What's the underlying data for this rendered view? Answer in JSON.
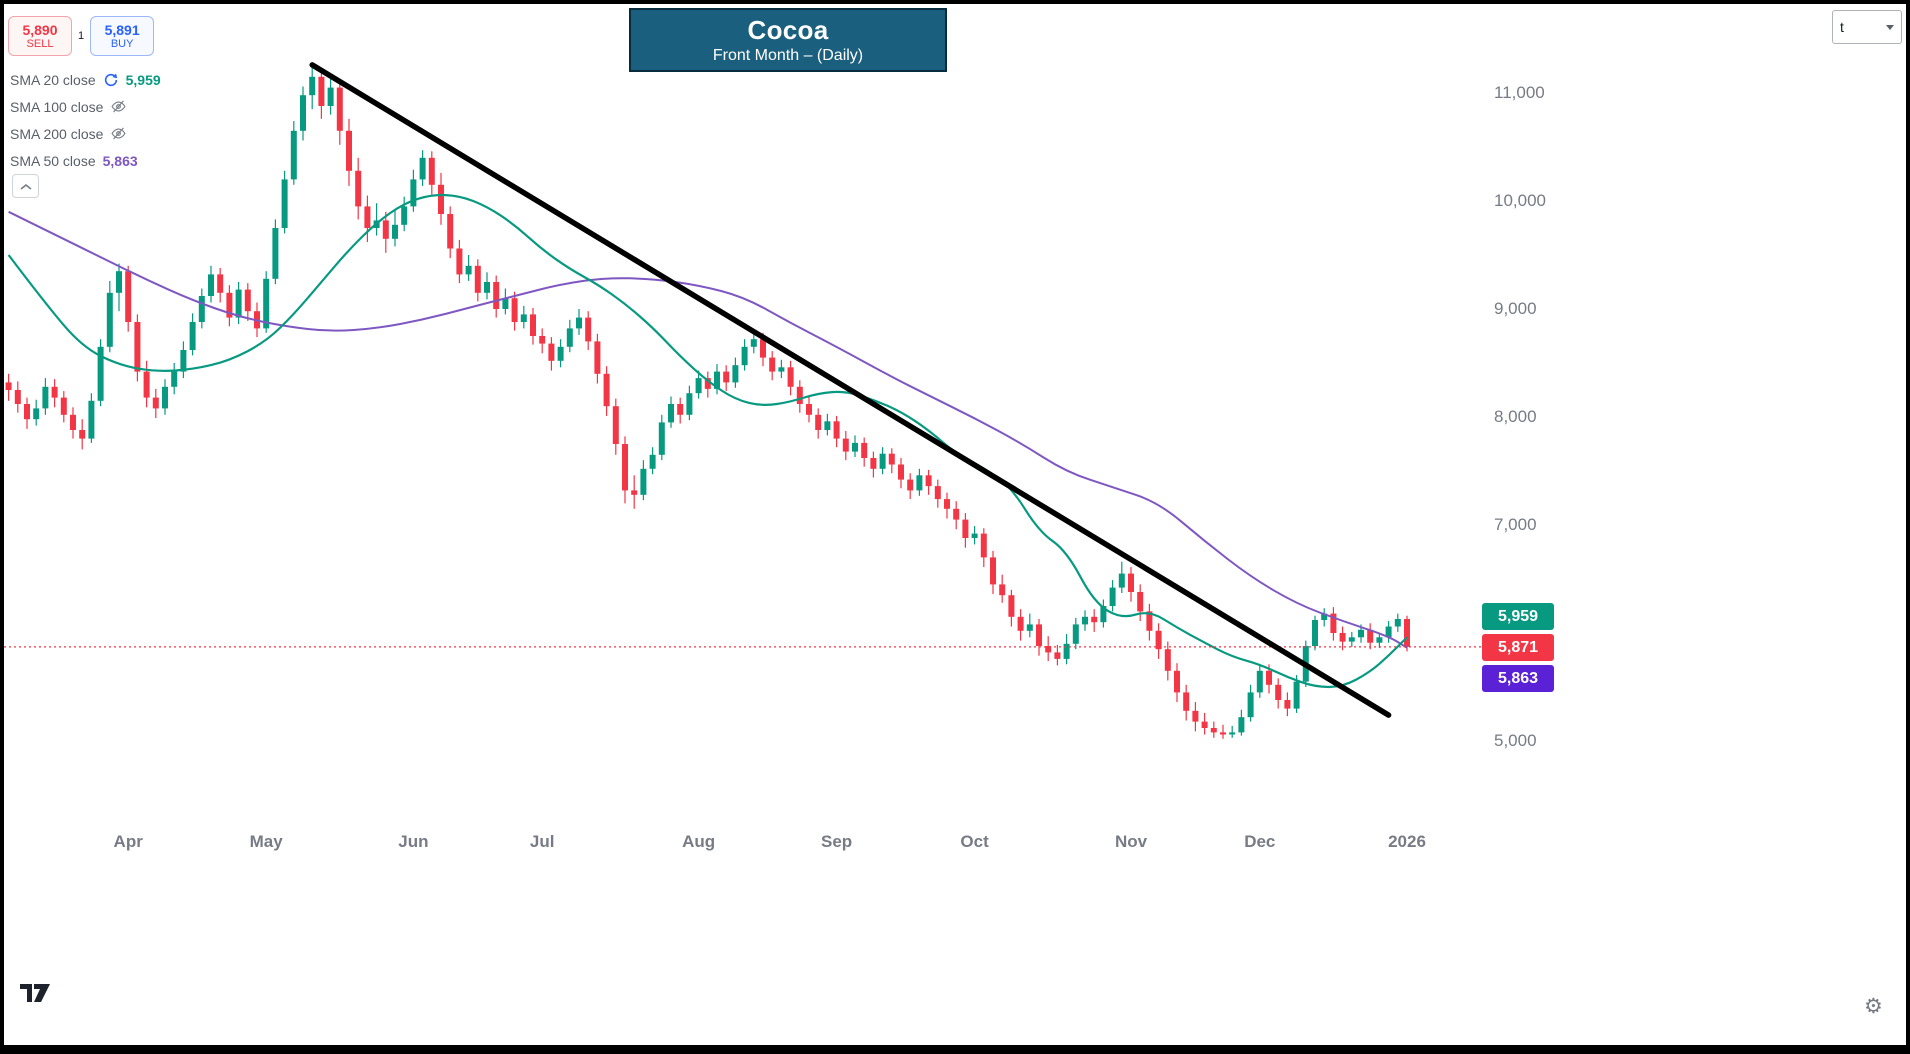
{
  "order_panel": {
    "sell": {
      "price": "5,890",
      "label": "SELL"
    },
    "buy": {
      "price": "5,891",
      "label": "BUY"
    },
    "spread": "1"
  },
  "legend": [
    {
      "name": "SMA 20 close",
      "value": "5,959",
      "value_color": "#089981",
      "icon": "sync"
    },
    {
      "name": "SMA 100 close",
      "icon": "eye-off"
    },
    {
      "name": "SMA 200 close",
      "icon": "eye-off"
    },
    {
      "name": "SMA 50 close",
      "value": "5,863",
      "value_color": "#7E57C2"
    }
  ],
  "title": {
    "text": "Cocoa",
    "subtitle": "Front Month – (Daily)"
  },
  "toolbar": {
    "symbol_value": "t"
  },
  "chart_data": {
    "type": "candlestick",
    "title": "Cocoa",
    "subtitle": "Front Month – (Daily)",
    "interval": "Daily",
    "colors": {
      "up": "#089981",
      "down": "#F23645",
      "axis_text": "#787B86"
    },
    "y_axis": {
      "ticks": [
        {
          "label": "11,000",
          "value": 11000
        },
        {
          "label": "10,000",
          "value": 10000
        },
        {
          "label": "9,000",
          "value": 9000
        },
        {
          "label": "8,000",
          "value": 8000
        },
        {
          "label": "7,000",
          "value": 7000
        },
        {
          "label": "5,000",
          "value": 5000
        }
      ],
      "min": 4950,
      "max": 11450
    },
    "x_axis": {
      "ticks": [
        {
          "label": "Apr",
          "index": 13
        },
        {
          "label": "May",
          "index": 28
        },
        {
          "label": "Jun",
          "index": 44
        },
        {
          "label": "Jul",
          "index": 58
        },
        {
          "label": "Aug",
          "index": 75
        },
        {
          "label": "Sep",
          "index": 90
        },
        {
          "label": "Oct",
          "index": 105
        },
        {
          "label": "Nov",
          "index": 122
        },
        {
          "label": "Dec",
          "index": 136
        },
        {
          "label": "2026",
          "index": 152
        }
      ]
    },
    "candles": [
      [
        8320,
        8400,
        8150,
        8250
      ],
      [
        8250,
        8330,
        8040,
        8120
      ],
      [
        8120,
        8180,
        7890,
        7980
      ],
      [
        7980,
        8160,
        7920,
        8080
      ],
      [
        8080,
        8360,
        8020,
        8280
      ],
      [
        8280,
        8350,
        8090,
        8180
      ],
      [
        8180,
        8240,
        7950,
        8020
      ],
      [
        8020,
        8090,
        7800,
        7880
      ],
      [
        7880,
        7980,
        7700,
        7800
      ],
      [
        7800,
        8220,
        7760,
        8150
      ],
      [
        8150,
        8720,
        8100,
        8650
      ],
      [
        8650,
        9260,
        8600,
        9150
      ],
      [
        9150,
        9420,
        8980,
        9350
      ],
      [
        9350,
        9400,
        8790,
        8880
      ],
      [
        8880,
        8950,
        8330,
        8420
      ],
      [
        8420,
        8520,
        8090,
        8180
      ],
      [
        8180,
        8260,
        7990,
        8080
      ],
      [
        8080,
        8350,
        8020,
        8280
      ],
      [
        8280,
        8500,
        8210,
        8420
      ],
      [
        8420,
        8700,
        8360,
        8620
      ],
      [
        8620,
        8960,
        8570,
        8880
      ],
      [
        8880,
        9190,
        8820,
        9120
      ],
      [
        9120,
        9400,
        9060,
        9320
      ],
      [
        9320,
        9380,
        9060,
        9150
      ],
      [
        9150,
        9220,
        8840,
        8920
      ],
      [
        8920,
        9250,
        8860,
        9180
      ],
      [
        9180,
        9240,
        8890,
        8980
      ],
      [
        8980,
        9060,
        8740,
        8820
      ],
      [
        8820,
        9350,
        8780,
        9280
      ],
      [
        9280,
        9830,
        9230,
        9750
      ],
      [
        9750,
        10280,
        9700,
        10200
      ],
      [
        10200,
        10740,
        10150,
        10650
      ],
      [
        10650,
        11060,
        10560,
        10980
      ],
      [
        10980,
        11260,
        10850,
        11150
      ],
      [
        11150,
        11210,
        10760,
        10880
      ],
      [
        10880,
        11160,
        10800,
        11050
      ],
      [
        11050,
        11120,
        10520,
        10650
      ],
      [
        10650,
        10760,
        10140,
        10280
      ],
      [
        10280,
        10400,
        9830,
        9950
      ],
      [
        9950,
        10050,
        9620,
        9750
      ],
      [
        9750,
        9980,
        9680,
        9820
      ],
      [
        9820,
        9900,
        9520,
        9650
      ],
      [
        9650,
        9910,
        9580,
        9780
      ],
      [
        9780,
        10040,
        9720,
        9950
      ],
      [
        9950,
        10290,
        9900,
        10200
      ],
      [
        10200,
        10470,
        10140,
        10400
      ],
      [
        10400,
        10460,
        10060,
        10150
      ],
      [
        10150,
        10260,
        9780,
        9880
      ],
      [
        9880,
        9950,
        9470,
        9560
      ],
      [
        9560,
        9640,
        9240,
        9320
      ],
      [
        9320,
        9500,
        9260,
        9400
      ],
      [
        9400,
        9460,
        9070,
        9150
      ],
      [
        9150,
        9340,
        9090,
        9250
      ],
      [
        9250,
        9310,
        8920,
        9000
      ],
      [
        9000,
        9190,
        8950,
        9100
      ],
      [
        9100,
        9160,
        8800,
        8880
      ],
      [
        8880,
        9030,
        8820,
        8950
      ],
      [
        8950,
        9010,
        8670,
        8750
      ],
      [
        8750,
        8820,
        8590,
        8680
      ],
      [
        8680,
        8740,
        8430,
        8520
      ],
      [
        8520,
        8720,
        8460,
        8650
      ],
      [
        8650,
        8900,
        8600,
        8820
      ],
      [
        8820,
        9000,
        8760,
        8920
      ],
      [
        8920,
        8980,
        8620,
        8700
      ],
      [
        8700,
        8770,
        8310,
        8400
      ],
      [
        8400,
        8470,
        8010,
        8100
      ],
      [
        8100,
        8170,
        7650,
        7750
      ],
      [
        7750,
        7820,
        7200,
        7320
      ],
      [
        7320,
        7460,
        7150,
        7280
      ],
      [
        7280,
        7600,
        7230,
        7520
      ],
      [
        7520,
        7720,
        7470,
        7650
      ],
      [
        7650,
        8020,
        7600,
        7950
      ],
      [
        7950,
        8190,
        7900,
        8120
      ],
      [
        8120,
        8180,
        7940,
        8020
      ],
      [
        8020,
        8290,
        7970,
        8220
      ],
      [
        8220,
        8430,
        8170,
        8360
      ],
      [
        8360,
        8420,
        8180,
        8260
      ],
      [
        8260,
        8490,
        8210,
        8420
      ],
      [
        8420,
        8480,
        8240,
        8320
      ],
      [
        8320,
        8550,
        8270,
        8480
      ],
      [
        8480,
        8720,
        8430,
        8650
      ],
      [
        8650,
        8790,
        8590,
        8720
      ],
      [
        8720,
        8780,
        8470,
        8550
      ],
      [
        8550,
        8610,
        8340,
        8420
      ],
      [
        8420,
        8530,
        8360,
        8460
      ],
      [
        8460,
        8520,
        8200,
        8280
      ],
      [
        8280,
        8340,
        8040,
        8120
      ],
      [
        8120,
        8200,
        7950,
        8020
      ],
      [
        8020,
        8080,
        7800,
        7880
      ],
      [
        7880,
        8030,
        7830,
        7960
      ],
      [
        7960,
        8010,
        7720,
        7800
      ],
      [
        7800,
        7870,
        7600,
        7680
      ],
      [
        7680,
        7830,
        7630,
        7760
      ],
      [
        7760,
        7810,
        7540,
        7620
      ],
      [
        7620,
        7680,
        7440,
        7520
      ],
      [
        7520,
        7720,
        7470,
        7660
      ],
      [
        7660,
        7710,
        7480,
        7560
      ],
      [
        7560,
        7620,
        7340,
        7420
      ],
      [
        7420,
        7480,
        7240,
        7320
      ],
      [
        7320,
        7520,
        7270,
        7460
      ],
      [
        7460,
        7510,
        7280,
        7360
      ],
      [
        7360,
        7420,
        7160,
        7240
      ],
      [
        7240,
        7300,
        7060,
        7150
      ],
      [
        7150,
        7220,
        6960,
        7050
      ],
      [
        7050,
        7110,
        6790,
        6880
      ],
      [
        6880,
        6990,
        6820,
        6920
      ],
      [
        6920,
        6970,
        6610,
        6700
      ],
      [
        6700,
        6760,
        6360,
        6450
      ],
      [
        6450,
        6540,
        6280,
        6350
      ],
      [
        6350,
        6400,
        6060,
        6150
      ],
      [
        6150,
        6220,
        5930,
        6020
      ],
      [
        6020,
        6180,
        5960,
        6080
      ],
      [
        6080,
        6130,
        5790,
        5880
      ],
      [
        5880,
        5970,
        5740,
        5820
      ],
      [
        5820,
        5890,
        5700,
        5760
      ],
      [
        5760,
        5990,
        5710,
        5900
      ],
      [
        5900,
        6140,
        5850,
        6080
      ],
      [
        6080,
        6210,
        6020,
        6150
      ],
      [
        6150,
        6220,
        6010,
        6100
      ],
      [
        6100,
        6310,
        6050,
        6250
      ],
      [
        6250,
        6490,
        6200,
        6420
      ],
      [
        6420,
        6660,
        6370,
        6550
      ],
      [
        6550,
        6610,
        6290,
        6380
      ],
      [
        6380,
        6450,
        6110,
        6200
      ],
      [
        6200,
        6270,
        5930,
        6020
      ],
      [
        6020,
        6090,
        5760,
        5850
      ],
      [
        5850,
        5920,
        5560,
        5650
      ],
      [
        5650,
        5720,
        5360,
        5450
      ],
      [
        5450,
        5520,
        5190,
        5280
      ],
      [
        5280,
        5360,
        5090,
        5180
      ],
      [
        5180,
        5260,
        5060,
        5120
      ],
      [
        5120,
        5180,
        5030,
        5080
      ],
      [
        5080,
        5150,
        5020,
        5060
      ],
      [
        5060,
        5140,
        5030,
        5080
      ],
      [
        5080,
        5290,
        5050,
        5220
      ],
      [
        5220,
        5520,
        5180,
        5450
      ],
      [
        5450,
        5700,
        5400,
        5650
      ],
      [
        5650,
        5710,
        5440,
        5520
      ],
      [
        5520,
        5580,
        5300,
        5380
      ],
      [
        5380,
        5450,
        5230,
        5300
      ],
      [
        5300,
        5610,
        5260,
        5550
      ],
      [
        5550,
        5930,
        5500,
        5880
      ],
      [
        5880,
        6160,
        5840,
        6120
      ],
      [
        6120,
        6230,
        6060,
        6180
      ],
      [
        6180,
        6240,
        5930,
        6000
      ],
      [
        6000,
        6060,
        5840,
        5920
      ],
      [
        5920,
        6010,
        5870,
        5960
      ],
      [
        5960,
        6080,
        5910,
        6030
      ],
      [
        6030,
        6090,
        5850,
        5910
      ],
      [
        5910,
        6000,
        5860,
        5960
      ],
      [
        5960,
        6110,
        5910,
        6060
      ],
      [
        6060,
        6180,
        6010,
        6130
      ],
      [
        6130,
        6160,
        5830,
        5871
      ]
    ],
    "sma20": {
      "name": "SMA 20",
      "color": "#089981",
      "last": "5,959",
      "points": [
        [
          0,
          9500
        ],
        [
          4,
          9050
        ],
        [
          8,
          8650
        ],
        [
          12,
          8480
        ],
        [
          16,
          8420
        ],
        [
          20,
          8440
        ],
        [
          24,
          8520
        ],
        [
          28,
          8700
        ],
        [
          31,
          8950
        ],
        [
          34,
          9250
        ],
        [
          37,
          9550
        ],
        [
          40,
          9800
        ],
        [
          43,
          9980
        ],
        [
          46,
          10060
        ],
        [
          49,
          10050
        ],
        [
          52,
          9950
        ],
        [
          55,
          9780
        ],
        [
          58,
          9550
        ],
        [
          61,
          9370
        ],
        [
          64,
          9230
        ],
        [
          67,
          9050
        ],
        [
          70,
          8830
        ],
        [
          73,
          8560
        ],
        [
          76,
          8330
        ],
        [
          79,
          8160
        ],
        [
          82,
          8100
        ],
        [
          85,
          8140
        ],
        [
          88,
          8220
        ],
        [
          91,
          8240
        ],
        [
          94,
          8160
        ],
        [
          97,
          8050
        ],
        [
          100,
          7880
        ],
        [
          103,
          7660
        ],
        [
          106,
          7530
        ],
        [
          109,
          7350
        ],
        [
          112,
          6940
        ],
        [
          115,
          6760
        ],
        [
          118,
          6280
        ],
        [
          121,
          6130
        ],
        [
          124,
          6210
        ],
        [
          127,
          6050
        ],
        [
          130,
          5910
        ],
        [
          133,
          5780
        ],
        [
          136,
          5710
        ],
        [
          139,
          5590
        ],
        [
          142,
          5500
        ],
        [
          145,
          5500
        ],
        [
          148,
          5640
        ],
        [
          150,
          5790
        ],
        [
          152,
          5959
        ]
      ]
    },
    "sma50": {
      "name": "SMA 50",
      "color": "#7E57C2",
      "last": "5,863",
      "points": [
        [
          0,
          9900
        ],
        [
          5,
          9690
        ],
        [
          10,
          9480
        ],
        [
          15,
          9270
        ],
        [
          20,
          9080
        ],
        [
          25,
          8930
        ],
        [
          30,
          8840
        ],
        [
          35,
          8790
        ],
        [
          40,
          8820
        ],
        [
          45,
          8900
        ],
        [
          50,
          9010
        ],
        [
          55,
          9120
        ],
        [
          60,
          9230
        ],
        [
          65,
          9290
        ],
        [
          70,
          9280
        ],
        [
          75,
          9220
        ],
        [
          80,
          9110
        ],
        [
          85,
          8870
        ],
        [
          90,
          8650
        ],
        [
          96,
          8370
        ],
        [
          100,
          8200
        ],
        [
          105,
          7990
        ],
        [
          110,
          7760
        ],
        [
          115,
          7490
        ],
        [
          120,
          7350
        ],
        [
          125,
          7210
        ],
        [
          130,
          6850
        ],
        [
          135,
          6520
        ],
        [
          140,
          6270
        ],
        [
          145,
          6110
        ],
        [
          150,
          5970
        ],
        [
          152,
          5863
        ]
      ]
    },
    "sma100": {
      "name": "SMA 100",
      "hidden": true
    },
    "sma200": {
      "name": "SMA 200",
      "hidden": true
    },
    "trendline": {
      "from": [
        33,
        11260
      ],
      "to": [
        150,
        5240
      ],
      "color": "#000000"
    },
    "last_price": {
      "value": 5871,
      "label": "5,871",
      "color": "#F23645"
    }
  }
}
